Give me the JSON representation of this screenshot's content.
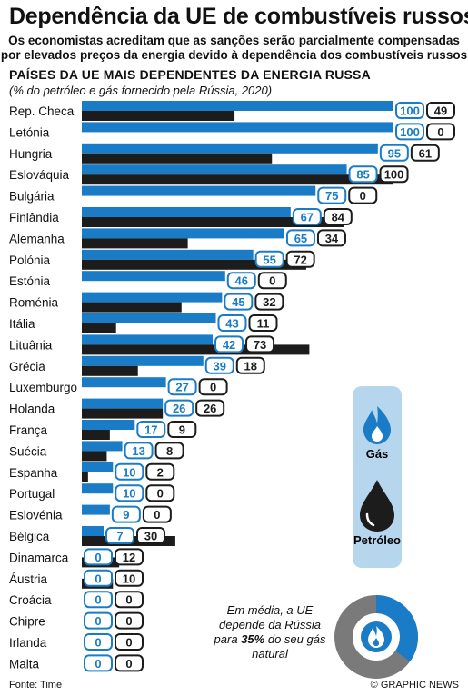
{
  "header": {
    "title": "Dependência da UE de combustíveis russos",
    "subtitle_line1": "Os economistas acreditam que as sanções serão parcialmente compensadas",
    "subtitle_line2": "por elevados preços da energia devido à dependência dos combustíveis russos"
  },
  "chart_heading": "PAÍSES DA UE MAIS DEPENDENTES DA ENERGIA RUSSA",
  "chart_note": "(% do petróleo e gás fornecido pela Rússia, 2020)",
  "legend": {
    "gas_label": "Gás",
    "oil_label": "Petróleo",
    "gas_icon": "gas-flame-icon",
    "oil_icon": "oil-drop-icon"
  },
  "average": {
    "text_before": "Em média, a UE depende da Rússia para",
    "value_text": "35%",
    "text_after": "do seu gás natural",
    "value": 35,
    "icon": "gas-flame-icon"
  },
  "footer": {
    "source": "Fonte: Time",
    "credit": "© GRAPHIC NEWS"
  },
  "colors": {
    "gas": "#1a7cc6",
    "oil": "#1c1c1c",
    "legend_panel": "#b6d6ee",
    "donut_rest": "#7a7a7a"
  },
  "chart_data": {
    "type": "bar",
    "orientation": "horizontal",
    "xlim": [
      0,
      100
    ],
    "categories": [
      "Rep. Checa",
      "Letónia",
      "Hungria",
      "Eslováquia",
      "Bulgária",
      "Finlândia",
      "Alemanha",
      "Polónia",
      "Estónia",
      "Roménia",
      "Itália",
      "Lituânia",
      "Grécia",
      "Luxemburgo",
      "Holanda",
      "França",
      "Suécia",
      "Espanha",
      "Portugal",
      "Eslovénia",
      "Bélgica",
      "Dinamarca",
      "Áustria",
      "Croácia",
      "Chipre",
      "Irlanda",
      "Malta"
    ],
    "series": [
      {
        "name": "Gás",
        "values": [
          100,
          100,
          95,
          85,
          75,
          67,
          65,
          55,
          46,
          45,
          43,
          42,
          39,
          27,
          26,
          17,
          13,
          10,
          10,
          9,
          7,
          0,
          0,
          0,
          0,
          0,
          0
        ]
      },
      {
        "name": "Petróleo",
        "values": [
          49,
          0,
          61,
          100,
          0,
          84,
          34,
          72,
          0,
          32,
          11,
          73,
          18,
          0,
          26,
          9,
          8,
          2,
          0,
          0,
          30,
          12,
          10,
          0,
          0,
          0,
          0
        ]
      }
    ]
  }
}
